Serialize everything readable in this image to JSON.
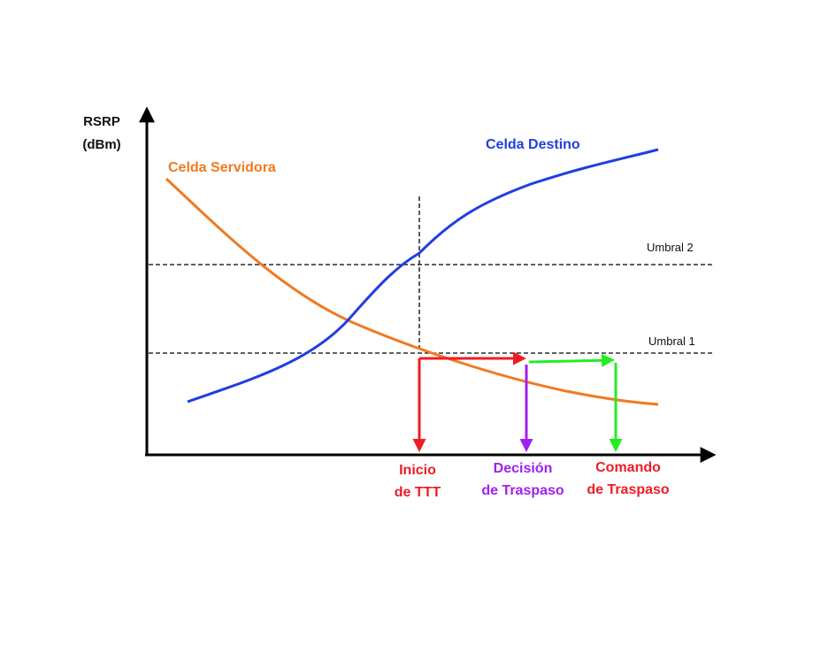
{
  "axes": {
    "y_label_line1": "RSRP",
    "y_label_line2": "(dBm)"
  },
  "curves": {
    "serving": {
      "label": "Celda Servidora",
      "color": "#f07a21"
    },
    "target": {
      "label": "Celda Destino",
      "color": "#1f3fe0"
    }
  },
  "thresholds": {
    "umbral2": "Umbral 2",
    "umbral1": "Umbral 1"
  },
  "events": {
    "ttt_start": {
      "line1": "Inicio",
      "line2": "de TTT",
      "color": "#ee1c24"
    },
    "decision": {
      "line1": "Decisión",
      "line2": "de Traspaso",
      "color": "#a020f0"
    },
    "command": {
      "line1": "Comando",
      "line2": "de Traspaso",
      "color": "#ee1c24"
    }
  },
  "colors": {
    "ttt_arrow": "#ee1c24",
    "decision_arrow": "#a020f0",
    "command_arrow": "#22ee22"
  }
}
